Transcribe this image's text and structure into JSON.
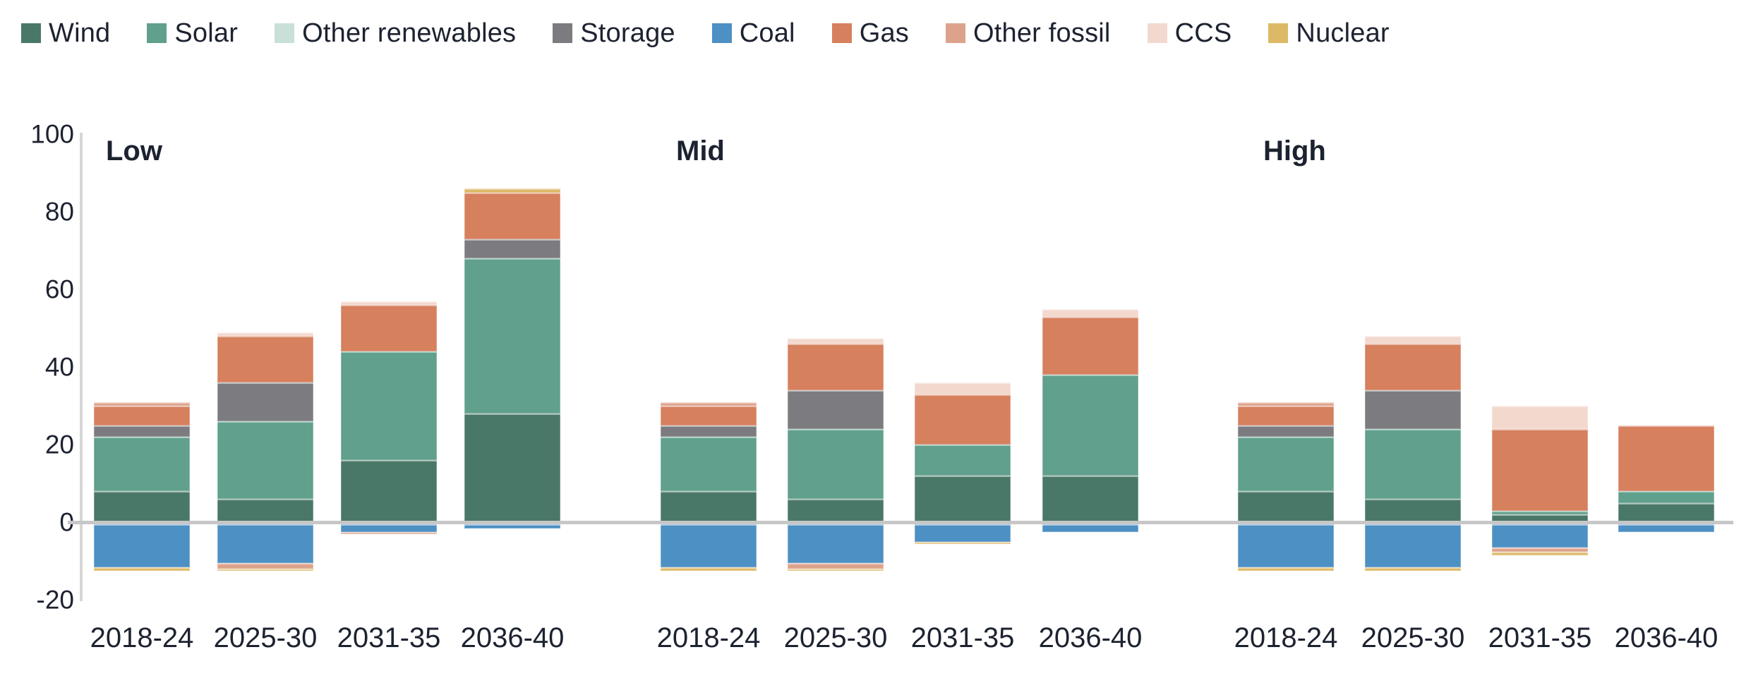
{
  "legend": {
    "items": [
      {
        "label": "Wind",
        "color": "#4A7868"
      },
      {
        "label": "Solar",
        "color": "#60A08C"
      },
      {
        "label": "Other renewables",
        "color": "#C8E0D7"
      },
      {
        "label": "Storage",
        "color": "#7C7C80"
      },
      {
        "label": "Coal",
        "color": "#4D90C4"
      },
      {
        "label": "Gas",
        "color": "#D6805E"
      },
      {
        "label": "Other fossil",
        "color": "#DDA28B"
      },
      {
        "label": "CCS",
        "color": "#F3D8CE"
      },
      {
        "label": "Nuclear",
        "color": "#DDB967"
      }
    ]
  },
  "y_axis": {
    "ticks": [
      100,
      80,
      60,
      40,
      20,
      0,
      -20
    ],
    "max": 100,
    "min": -20
  },
  "chart_data": {
    "type": "bar",
    "stacked": true,
    "title": "",
    "xlabel": "",
    "ylabel": "",
    "categories": [
      "2018-24",
      "2025-30",
      "2031-35",
      "2036-40"
    ],
    "ylim": [
      -20,
      100
    ],
    "grid": false,
    "legend_position": "top",
    "panels": [
      {
        "title": "Low",
        "bars": [
          {
            "category": "2018-24",
            "segments": [
              [
                "Wind",
                8
              ],
              [
                "Solar",
                14
              ],
              [
                "Storage",
                3
              ],
              [
                "Gas",
                5
              ],
              [
                "Other fossil",
                1
              ],
              [
                "Coal",
                -11
              ],
              [
                "Nuclear",
                -1
              ]
            ]
          },
          {
            "category": "2025-30",
            "segments": [
              [
                "Wind",
                6
              ],
              [
                "Solar",
                20
              ],
              [
                "Storage",
                10
              ],
              [
                "Gas",
                12
              ],
              [
                "CCS",
                1
              ],
              [
                "Coal",
                -10
              ],
              [
                "Other fossil",
                -1.5
              ],
              [
                "Nuclear",
                -0.5
              ]
            ]
          },
          {
            "category": "2031-35",
            "segments": [
              [
                "Wind",
                16
              ],
              [
                "Solar",
                28
              ],
              [
                "Gas",
                12
              ],
              [
                "CCS",
                1
              ],
              [
                "Coal",
                -2
              ],
              [
                "Other fossil",
                -0.5
              ]
            ]
          },
          {
            "category": "2036-40",
            "segments": [
              [
                "Wind",
                28
              ],
              [
                "Solar",
                40
              ],
              [
                "Storage",
                5
              ],
              [
                "Gas",
                12
              ],
              [
                "Nuclear",
                1
              ],
              [
                "Coal",
                -1
              ]
            ]
          }
        ]
      },
      {
        "title": "Mid",
        "bars": [
          {
            "category": "2018-24",
            "segments": [
              [
                "Wind",
                8
              ],
              [
                "Solar",
                14
              ],
              [
                "Storage",
                3
              ],
              [
                "Gas",
                5
              ],
              [
                "Other fossil",
                1
              ],
              [
                "Coal",
                -11
              ],
              [
                "Nuclear",
                -1
              ]
            ]
          },
          {
            "category": "2025-30",
            "segments": [
              [
                "Wind",
                6
              ],
              [
                "Solar",
                18
              ],
              [
                "Storage",
                10
              ],
              [
                "Gas",
                12
              ],
              [
                "CCS",
                1.5
              ],
              [
                "Coal",
                -10
              ],
              [
                "Other fossil",
                -1.5
              ],
              [
                "Nuclear",
                -0.5
              ]
            ]
          },
          {
            "category": "2031-35",
            "segments": [
              [
                "Wind",
                12
              ],
              [
                "Solar",
                8
              ],
              [
                "Gas",
                13
              ],
              [
                "CCS",
                3
              ],
              [
                "Coal",
                -4.5
              ],
              [
                "Nuclear",
                -0.5
              ]
            ]
          },
          {
            "category": "2036-40",
            "segments": [
              [
                "Wind",
                12
              ],
              [
                "Solar",
                26
              ],
              [
                "Gas",
                15
              ],
              [
                "CCS",
                2
              ],
              [
                "Coal",
                -2
              ]
            ]
          }
        ]
      },
      {
        "title": "High",
        "bars": [
          {
            "category": "2018-24",
            "segments": [
              [
                "Wind",
                8
              ],
              [
                "Solar",
                14
              ],
              [
                "Storage",
                3
              ],
              [
                "Gas",
                5
              ],
              [
                "Other fossil",
                1
              ],
              [
                "Coal",
                -11
              ],
              [
                "Nuclear",
                -1
              ]
            ]
          },
          {
            "category": "2025-30",
            "segments": [
              [
                "Wind",
                6
              ],
              [
                "Solar",
                18
              ],
              [
                "Storage",
                10
              ],
              [
                "Gas",
                12
              ],
              [
                "CCS",
                2
              ],
              [
                "Coal",
                -11
              ],
              [
                "Nuclear",
                -1
              ]
            ]
          },
          {
            "category": "2031-35",
            "segments": [
              [
                "Wind",
                2
              ],
              [
                "Solar",
                1
              ],
              [
                "Gas",
                21
              ],
              [
                "CCS",
                6
              ],
              [
                "Coal",
                -6
              ],
              [
                "Other fossil",
                -1
              ],
              [
                "Nuclear",
                -1
              ]
            ]
          },
          {
            "category": "2036-40",
            "segments": [
              [
                "Wind",
                5
              ],
              [
                "Solar",
                3
              ],
              [
                "Gas",
                17
              ],
              [
                "Coal",
                -2
              ]
            ]
          }
        ]
      }
    ]
  }
}
